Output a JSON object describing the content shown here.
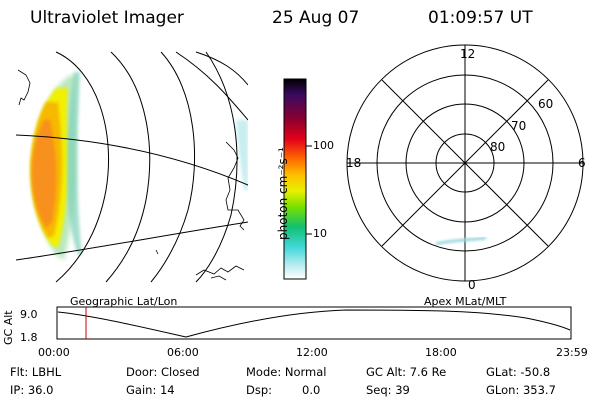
{
  "header": {
    "instrument": "Ultraviolet Imager",
    "date": "25 Aug 07",
    "time": "01:09:57 UT"
  },
  "colorbar": {
    "unit_label": "photon cm⁻²s⁻¹",
    "ticks": [
      "100",
      "10"
    ],
    "colors": [
      "#000000",
      "#3a0a60",
      "#8b0030",
      "#e2001a",
      "#ff6a00",
      "#ffc000",
      "#e8f000",
      "#78e000",
      "#12c070",
      "#40d8d8",
      "#b8ecef",
      "#ffffff"
    ]
  },
  "polar_plot": {
    "mlt_labels": [
      "12",
      "18",
      "6",
      "0"
    ],
    "lat_labels": [
      "60",
      "70",
      "80"
    ]
  },
  "orbit_plot": {
    "left_title": "Geographic Lat/Lon",
    "right_title": "Apex MLat/MLT",
    "ylabel": "GC Alt",
    "yticks": [
      "9.0",
      "1.8"
    ],
    "xticks": [
      "00:00",
      "06:00",
      "12:00",
      "18:00",
      "23:59"
    ],
    "marker_color": "#cc0000"
  },
  "footer": {
    "flt": "Flt: LBHL",
    "ip": "IP: 36.0",
    "door": "Door: Closed",
    "gain": "Gain: 14",
    "mode": "Mode: Normal",
    "dsp_label": "Dsp:",
    "dsp_value": "0.0",
    "gc_alt": "GC Alt: 7.6 Re",
    "seq": "Seq: 39",
    "glat": "GLat: -50.8",
    "glon": "GLon: 353.7"
  }
}
